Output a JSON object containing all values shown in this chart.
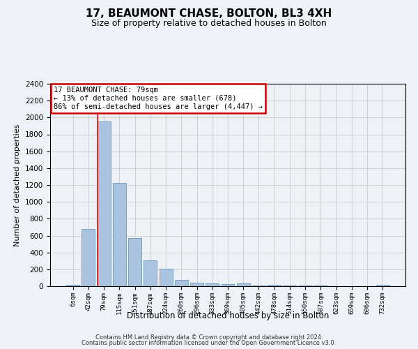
{
  "title": "17, BEAUMONT CHASE, BOLTON, BL3 4XH",
  "subtitle": "Size of property relative to detached houses in Bolton",
  "xlabel": "Distribution of detached houses by size in Bolton",
  "ylabel": "Number of detached properties",
  "categories": [
    "6sqm",
    "42sqm",
    "79sqm",
    "115sqm",
    "151sqm",
    "187sqm",
    "224sqm",
    "260sqm",
    "296sqm",
    "333sqm",
    "369sqm",
    "405sqm",
    "442sqm",
    "478sqm",
    "514sqm",
    "550sqm",
    "587sqm",
    "623sqm",
    "659sqm",
    "696sqm",
    "732sqm"
  ],
  "values": [
    15,
    680,
    1950,
    1225,
    575,
    310,
    205,
    75,
    45,
    35,
    25,
    30,
    5,
    20,
    5,
    5,
    5,
    2,
    2,
    2,
    15
  ],
  "bar_color": "#aac4df",
  "bar_edge_color": "#6699bb",
  "highlight_index": 2,
  "annotation_text": "17 BEAUMONT CHASE: 79sqm\n← 13% of detached houses are smaller (678)\n86% of semi-detached houses are larger (4,447) →",
  "ylim": [
    0,
    2400
  ],
  "yticks": [
    0,
    200,
    400,
    600,
    800,
    1000,
    1200,
    1400,
    1600,
    1800,
    2000,
    2200,
    2400
  ],
  "footer_line1": "Contains HM Land Registry data © Crown copyright and database right 2024.",
  "footer_line2": "Contains public sector information licensed under the Open Government Licence v3.0.",
  "background_color": "#eef2f7",
  "annotation_box_color": "#ffffff",
  "annotation_box_edgecolor": "#cc0000",
  "grid_color": "#cccccc",
  "title_fontsize": 11,
  "subtitle_fontsize": 9
}
